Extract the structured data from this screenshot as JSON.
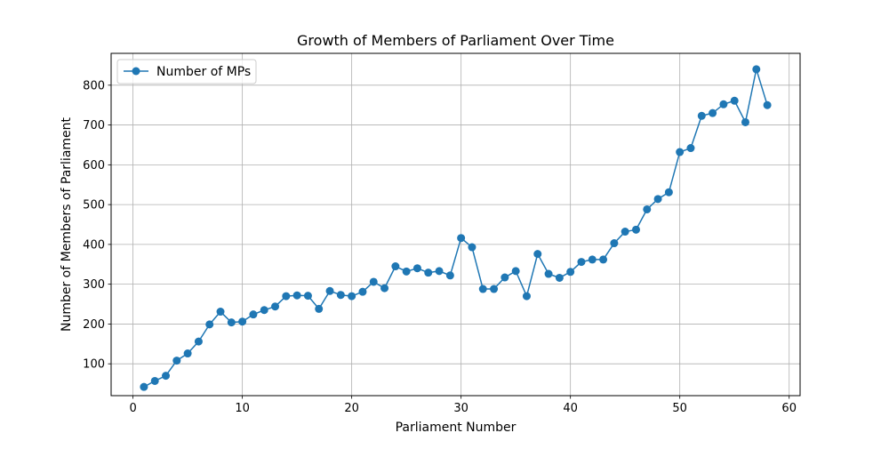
{
  "chart_data": {
    "type": "line",
    "title": "Growth of Members of Parliament Over Time",
    "xlabel": "Parliament Number",
    "ylabel": "Number of Members of Parliament",
    "xlim": [
      -2,
      61
    ],
    "ylim": [
      20,
      880
    ],
    "xticks": [
      0,
      10,
      20,
      30,
      40,
      50,
      60
    ],
    "yticks": [
      100,
      200,
      300,
      400,
      500,
      600,
      700,
      800
    ],
    "grid": true,
    "legend_position": "top-left",
    "series": [
      {
        "name": "Number of MPs",
        "color": "#1f77b4",
        "marker": "circle",
        "x": [
          1,
          2,
          3,
          4,
          5,
          6,
          7,
          8,
          9,
          10,
          11,
          12,
          13,
          14,
          15,
          16,
          17,
          18,
          19,
          20,
          21,
          22,
          23,
          24,
          25,
          26,
          27,
          28,
          29,
          30,
          31,
          32,
          33,
          34,
          35,
          36,
          37,
          38,
          39,
          40,
          41,
          42,
          43,
          44,
          45,
          46,
          47,
          48,
          49,
          50,
          51,
          52,
          53,
          54,
          55,
          56,
          57,
          58
        ],
        "y": [
          42,
          57,
          70,
          108,
          126,
          156,
          199,
          231,
          204,
          206,
          224,
          235,
          244,
          270,
          272,
          271,
          238,
          283,
          273,
          270,
          281,
          306,
          290,
          345,
          332,
          340,
          329,
          333,
          322,
          416,
          393,
          288,
          288,
          317,
          333,
          270,
          376,
          326,
          316,
          331,
          356,
          362,
          362,
          403,
          432,
          437,
          488,
          514,
          531,
          632,
          642,
          723,
          730,
          752,
          761,
          707,
          840,
          750
        ]
      }
    ]
  }
}
